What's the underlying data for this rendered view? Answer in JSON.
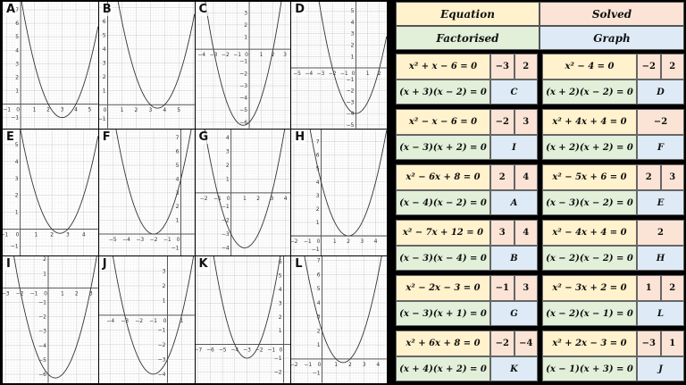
{
  "header": {
    "equation": "Equation",
    "solved": "Solved",
    "factorised": "Factorised",
    "graph": "Graph"
  },
  "colors": {
    "equation": "#fff2cc",
    "solved": "#fbe4d5",
    "factorised": "#e2efd9",
    "graph": "#deebf6",
    "background": "#000000"
  },
  "cards": [
    {
      "equation": "x² + x − 6 = 0",
      "solutions": [
        "−3",
        "2"
      ],
      "factorised": "(x + 3)(x − 2) = 0",
      "graph": "C"
    },
    {
      "equation": "x² − 4 = 0",
      "solutions": [
        "−2",
        "2"
      ],
      "factorised": "(x + 2)(x − 2) = 0",
      "graph": "D"
    },
    {
      "equation": "x² − x − 6 = 0",
      "solutions": [
        "−2",
        "3"
      ],
      "factorised": "(x − 3)(x + 2) = 0",
      "graph": "I"
    },
    {
      "equation": "x² + 4x + 4 = 0",
      "solutions": [
        "−2"
      ],
      "factorised": "(x + 2)(x + 2) = 0",
      "graph": "F"
    },
    {
      "equation": "x² − 6x + 8 = 0",
      "solutions": [
        "2",
        "4"
      ],
      "factorised": "(x − 4)(x − 2) = 0",
      "graph": "A"
    },
    {
      "equation": "x² − 5x + 6 = 0",
      "solutions": [
        "2",
        "3"
      ],
      "factorised": "(x − 3)(x − 2) = 0",
      "graph": "E"
    },
    {
      "equation": "x² − 7x + 12 = 0",
      "solutions": [
        "3",
        "4"
      ],
      "factorised": "(x − 3)(x − 4) = 0",
      "graph": "B"
    },
    {
      "equation": "x² − 4x + 4 = 0",
      "solutions": [
        "2"
      ],
      "factorised": "(x − 2)(x − 2) = 0",
      "graph": "H"
    },
    {
      "equation": "x² − 2x − 3 = 0",
      "solutions": [
        "−1",
        "3"
      ],
      "factorised": "(x − 3)(x + 1) = 0",
      "graph": "G"
    },
    {
      "equation": "x² − 3x + 2 = 0",
      "solutions": [
        "1",
        "2"
      ],
      "factorised": "(x − 2)(x − 1) = 0",
      "graph": "L"
    },
    {
      "equation": "x² + 6x + 8 = 0",
      "solutions": [
        "−2",
        "−4"
      ],
      "factorised": "(x + 4)(x + 2) = 0",
      "graph": "K"
    },
    {
      "equation": "x² + 2x − 3 = 0",
      "solutions": [
        "−3",
        "1"
      ],
      "factorised": "(x − 1)(x + 3) = 0",
      "graph": "J"
    }
  ],
  "graphs": [
    {
      "label": "A",
      "b": -6,
      "c": 8,
      "xmin": -1.3,
      "xmax": 5.6,
      "ymin": -1.8,
      "ymax": 7.6,
      "xticks": [
        -1,
        0,
        1,
        2,
        3,
        4,
        5
      ],
      "yticks": [
        -1,
        1,
        2,
        3,
        4,
        5,
        6,
        7
      ]
    },
    {
      "label": "B",
      "b": -7,
      "c": 12,
      "xmin": -0.6,
      "xmax": 6.1,
      "ymin": -1.7,
      "ymax": 7.4,
      "xticks": [
        0,
        1,
        2,
        3,
        4,
        5
      ],
      "yticks": [
        -1,
        1,
        2,
        3,
        4,
        5,
        6,
        7
      ]
    },
    {
      "label": "C",
      "b": 1,
      "c": -6,
      "xmin": -4.5,
      "xmax": 3.5,
      "ymin": -6.5,
      "ymax": 3.9,
      "xticks": [
        -4,
        -3,
        -2,
        -1,
        0,
        1,
        2,
        3
      ],
      "yticks": [
        -6,
        -5,
        -4,
        -3,
        -2,
        -1,
        1,
        2,
        3
      ]
    },
    {
      "label": "D",
      "b": 0,
      "c": -4,
      "xmin": -5.5,
      "xmax": 2.6,
      "ymin": -5.3,
      "ymax": 5.8,
      "xticks": [
        -5,
        -4,
        -3,
        -2,
        -1,
        0,
        1,
        2
      ],
      "yticks": [
        -5,
        -4,
        -3,
        -2,
        -1,
        1,
        2,
        3,
        4,
        5
      ]
    },
    {
      "label": "E",
      "b": -5,
      "c": 6,
      "xmin": -1.1,
      "xmax": 4.9,
      "ymin": -1.6,
      "ymax": 5.9,
      "xticks": [
        -1,
        0,
        1,
        2,
        3,
        4
      ],
      "yticks": [
        -1,
        1,
        2,
        3,
        4,
        5
      ]
    },
    {
      "label": "F",
      "b": 4,
      "c": 4,
      "xmin": -6.0,
      "xmax": 1.0,
      "ymin": -1.6,
      "ymax": 7.6,
      "xticks": [
        -5,
        -4,
        -3,
        -2,
        -1,
        0
      ],
      "yticks": [
        -1,
        1,
        2,
        3,
        4,
        5,
        6,
        7
      ]
    },
    {
      "label": "G",
      "b": -2,
      "c": -3,
      "xmin": -2.6,
      "xmax": 4.4,
      "ymin": -4.6,
      "ymax": 4.6,
      "xticks": [
        -2,
        -1,
        0,
        1,
        2,
        3,
        4
      ],
      "yticks": [
        -4,
        -3,
        -2,
        -1,
        1,
        2,
        3,
        4
      ]
    },
    {
      "label": "H",
      "b": -4,
      "c": 4,
      "xmin": -2.2,
      "xmax": 4.8,
      "ymin": -1.5,
      "ymax": 7.9,
      "xticks": [
        -2,
        -1,
        0,
        1,
        2,
        3,
        4
      ],
      "yticks": [
        -1,
        1,
        2,
        3,
        4,
        5,
        6,
        7
      ]
    },
    {
      "label": "I",
      "b": -1,
      "c": -6,
      "xmin": -3.2,
      "xmax": 3.5,
      "ymin": -6.6,
      "ymax": 2.2,
      "xticks": [
        -3,
        -2,
        -1,
        0,
        1,
        2,
        3
      ],
      "yticks": [
        -6,
        -5,
        -4,
        -3,
        -2,
        -1,
        1,
        2
      ]
    },
    {
      "label": "J",
      "b": 2,
      "c": -3,
      "xmin": -4.8,
      "xmax": 1.9,
      "ymin": -4.6,
      "ymax": 4.0,
      "xticks": [
        -4,
        -3,
        -2,
        -1,
        0,
        1
      ],
      "yticks": [
        -4,
        -3,
        -2,
        -1,
        1,
        2,
        3
      ]
    },
    {
      "label": "K",
      "b": 6,
      "c": 8,
      "xmin": -7.2,
      "xmax": 0.6,
      "ymin": -2.8,
      "ymax": 6.4,
      "xticks": [
        -7,
        -6,
        -5,
        -4,
        -3,
        -2,
        -1,
        0
      ],
      "yticks": [
        -2,
        -1,
        1,
        2,
        3,
        4,
        5,
        6
      ]
    },
    {
      "label": "L",
      "b": -3,
      "c": 2,
      "xmin": -2.2,
      "xmax": 4.6,
      "ymin": -1.7,
      "ymax": 7.3,
      "xticks": [
        -2,
        -1,
        0,
        1,
        2,
        3,
        4
      ],
      "yticks": [
        -1,
        1,
        2,
        3,
        4,
        5,
        6,
        7
      ]
    }
  ]
}
